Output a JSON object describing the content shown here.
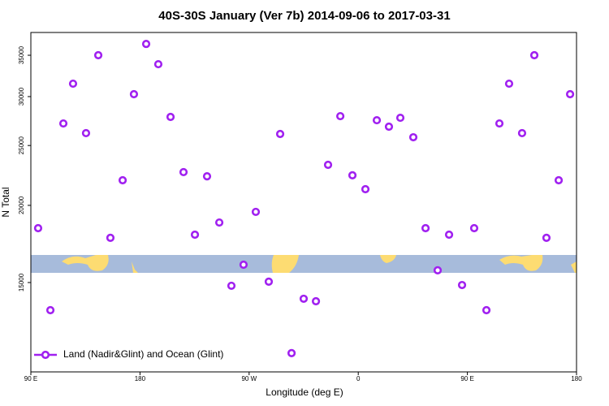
{
  "chart_data": {
    "type": "scatter",
    "title": "40S-30S January (Ver 7b)   2014-09-06 to 2017-03-31",
    "x_label": "Longitude (deg E)",
    "y_label": "N Total",
    "xlim": [
      90,
      540
    ],
    "xticks": [
      {
        "value": 90,
        "label": "90 E"
      },
      180,
      {
        "value": 270,
        "label": "90 W"
      },
      {
        "value": 360,
        "label": "0"
      },
      {
        "value": 450,
        "label": "90 E"
      },
      {
        "value": 540,
        "label": "180"
      }
    ],
    "ylim": [
      10750,
      38100
    ],
    "log_y": true,
    "yticks": [
      15000,
      20000,
      25000,
      30000,
      35000
    ],
    "legend": "lower left",
    "x": [
      96.0,
      106.1,
      116.8,
      124.8,
      135.5,
      145.6,
      155.6,
      165.7,
      175.0,
      185.1,
      195.1,
      205.2,
      215.9,
      225.3,
      235.3,
      245.4,
      255.4,
      265.4,
      275.5,
      286.2,
      295.6,
      305.0,
      315.0,
      325.1,
      335.1,
      345.2,
      355.2,
      365.9,
      375.3,
      385.3,
      394.7,
      405.4,
      415.5,
      425.5,
      434.9,
      445.6,
      455.6,
      465.7,
      476.4,
      484.4,
      495.1,
      505.2,
      515.2,
      525.3,
      534.7
    ],
    "series": [
      {
        "name": "Land (Nadir&Glint) and Ocean (Glint)",
        "color": "#a020f0",
        "values": [
          18370,
          13530,
          27140,
          31480,
          26180,
          35000,
          17720,
          21960,
          30270,
          36510,
          33850,
          27810,
          22640,
          17930,
          22290,
          18760,
          14820,
          16030,
          19520,
          15050,
          26100,
          11530,
          14120,
          13990,
          23260,
          27890,
          22370,
          21240,
          27470,
          26820,
          27720,
          25780,
          18370,
          15700,
          17930,
          14860,
          18370,
          13530,
          27140,
          31480,
          26180,
          35000,
          17720,
          21960,
          30270
        ]
      }
    ]
  }
}
